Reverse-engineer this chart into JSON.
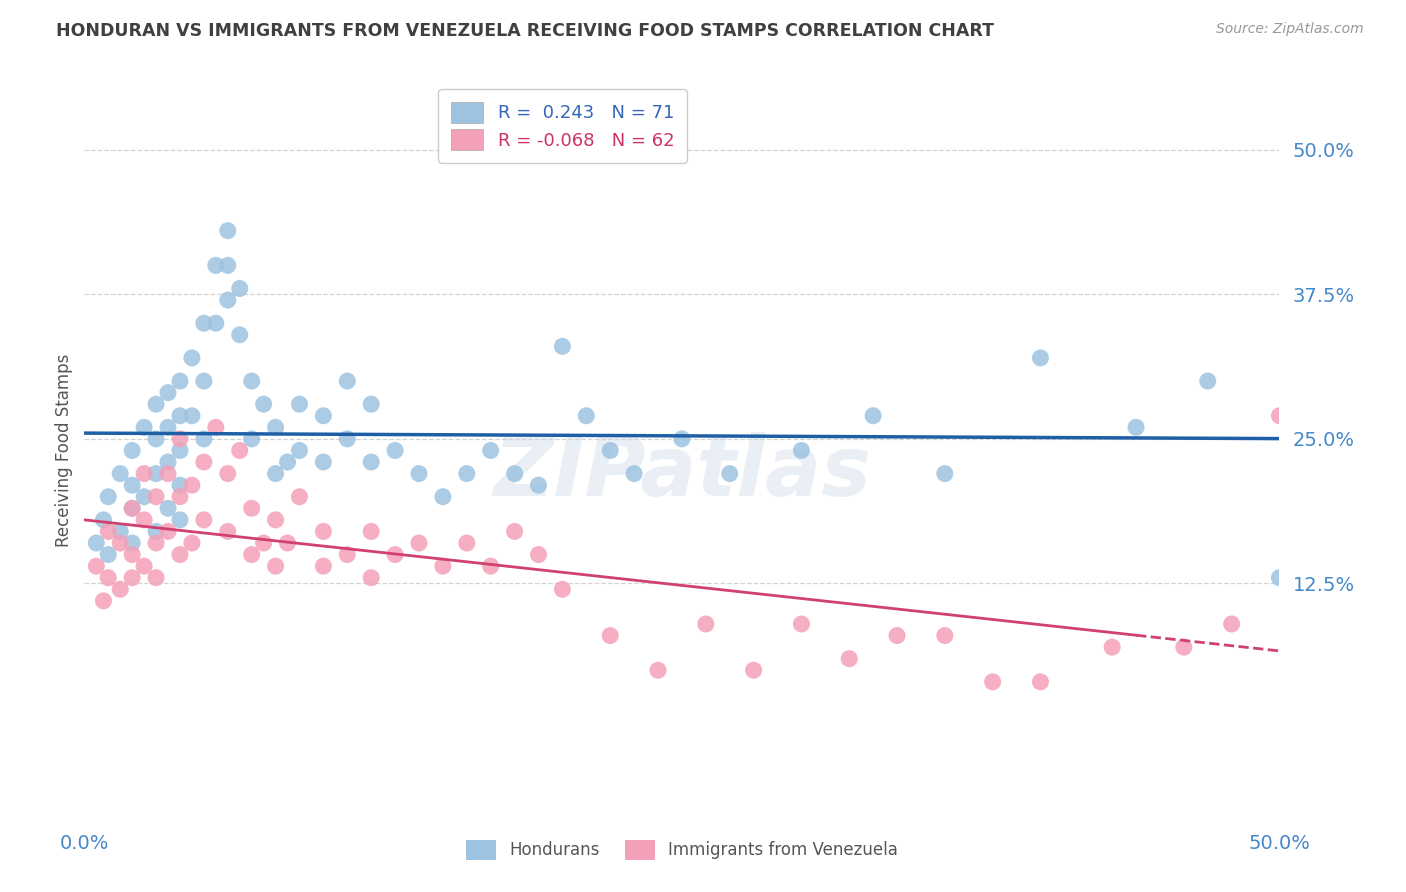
{
  "title": "HONDURAN VS IMMIGRANTS FROM VENEZUELA RECEIVING FOOD STAMPS CORRELATION CHART",
  "source": "Source: ZipAtlas.com",
  "ylabel": "Receiving Food Stamps",
  "ytick_labels": [
    "50.0%",
    "37.5%",
    "25.0%",
    "12.5%"
  ],
  "ytick_values": [
    0.5,
    0.375,
    0.25,
    0.125
  ],
  "xmin": 0.0,
  "xmax": 0.5,
  "ymin": -0.08,
  "ymax": 0.56,
  "hondurans_color": "#9dc3e0",
  "venezuela_color": "#f4a0b8",
  "hondurans_line_color": "#1f5fa6",
  "venezuela_line_color": "#d04070",
  "background_color": "#ffffff",
  "grid_color": "#c8c8c8",
  "title_color": "#404040",
  "watermark": "ZIPatlas",
  "legend1_label": "R =  0.243   N = 71",
  "legend2_label": "R = -0.068   N = 62",
  "hondurans_x": [
    0.005,
    0.008,
    0.01,
    0.01,
    0.015,
    0.015,
    0.02,
    0.02,
    0.02,
    0.02,
    0.025,
    0.025,
    0.03,
    0.03,
    0.03,
    0.03,
    0.035,
    0.035,
    0.035,
    0.035,
    0.04,
    0.04,
    0.04,
    0.04,
    0.04,
    0.045,
    0.045,
    0.05,
    0.05,
    0.05,
    0.055,
    0.055,
    0.06,
    0.06,
    0.06,
    0.065,
    0.065,
    0.07,
    0.07,
    0.075,
    0.08,
    0.08,
    0.085,
    0.09,
    0.09,
    0.1,
    0.1,
    0.11,
    0.11,
    0.12,
    0.12,
    0.13,
    0.14,
    0.15,
    0.16,
    0.17,
    0.18,
    0.19,
    0.2,
    0.21,
    0.22,
    0.23,
    0.25,
    0.27,
    0.3,
    0.33,
    0.36,
    0.4,
    0.44,
    0.47,
    0.5
  ],
  "hondurans_y": [
    0.16,
    0.18,
    0.2,
    0.15,
    0.22,
    0.17,
    0.24,
    0.19,
    0.16,
    0.21,
    0.26,
    0.2,
    0.28,
    0.25,
    0.22,
    0.17,
    0.29,
    0.26,
    0.23,
    0.19,
    0.3,
    0.27,
    0.24,
    0.21,
    0.18,
    0.32,
    0.27,
    0.35,
    0.3,
    0.25,
    0.4,
    0.35,
    0.43,
    0.4,
    0.37,
    0.38,
    0.34,
    0.3,
    0.25,
    0.28,
    0.26,
    0.22,
    0.23,
    0.28,
    0.24,
    0.27,
    0.23,
    0.3,
    0.25,
    0.28,
    0.23,
    0.24,
    0.22,
    0.2,
    0.22,
    0.24,
    0.22,
    0.21,
    0.33,
    0.27,
    0.24,
    0.22,
    0.25,
    0.22,
    0.24,
    0.27,
    0.22,
    0.32,
    0.26,
    0.3,
    0.13
  ],
  "venezuela_x": [
    0.005,
    0.008,
    0.01,
    0.01,
    0.015,
    0.015,
    0.02,
    0.02,
    0.02,
    0.025,
    0.025,
    0.025,
    0.03,
    0.03,
    0.03,
    0.035,
    0.035,
    0.04,
    0.04,
    0.04,
    0.045,
    0.045,
    0.05,
    0.05,
    0.055,
    0.06,
    0.06,
    0.065,
    0.07,
    0.07,
    0.075,
    0.08,
    0.08,
    0.085,
    0.09,
    0.1,
    0.1,
    0.11,
    0.12,
    0.12,
    0.13,
    0.14,
    0.15,
    0.16,
    0.17,
    0.18,
    0.19,
    0.2,
    0.22,
    0.24,
    0.26,
    0.28,
    0.3,
    0.32,
    0.34,
    0.36,
    0.38,
    0.4,
    0.43,
    0.46,
    0.48,
    0.5
  ],
  "venezuela_y": [
    0.14,
    0.11,
    0.17,
    0.13,
    0.16,
    0.12,
    0.15,
    0.19,
    0.13,
    0.22,
    0.18,
    0.14,
    0.2,
    0.16,
    0.13,
    0.22,
    0.17,
    0.25,
    0.2,
    0.15,
    0.21,
    0.16,
    0.23,
    0.18,
    0.26,
    0.22,
    0.17,
    0.24,
    0.19,
    0.15,
    0.16,
    0.18,
    0.14,
    0.16,
    0.2,
    0.17,
    0.14,
    0.15,
    0.17,
    0.13,
    0.15,
    0.16,
    0.14,
    0.16,
    0.14,
    0.17,
    0.15,
    0.12,
    0.08,
    0.05,
    0.09,
    0.05,
    0.09,
    0.06,
    0.08,
    0.08,
    0.04,
    0.04,
    0.07,
    0.07,
    0.09,
    0.27
  ]
}
